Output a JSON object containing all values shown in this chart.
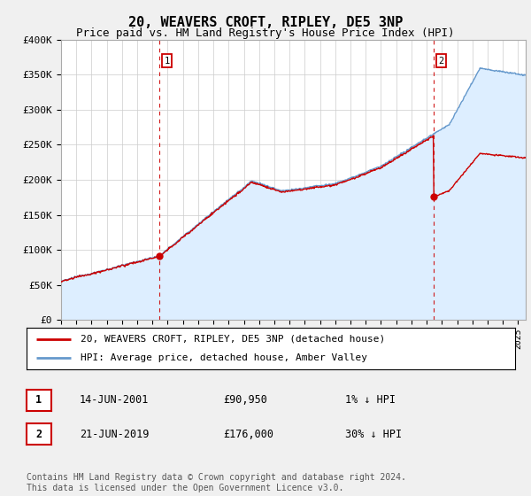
{
  "title": "20, WEAVERS CROFT, RIPLEY, DE5 3NP",
  "subtitle": "Price paid vs. HM Land Registry's House Price Index (HPI)",
  "ylim": [
    0,
    400000
  ],
  "yticks": [
    0,
    50000,
    100000,
    150000,
    200000,
    250000,
    300000,
    350000,
    400000
  ],
  "ytick_labels": [
    "£0",
    "£50K",
    "£100K",
    "£150K",
    "£200K",
    "£250K",
    "£300K",
    "£350K",
    "£400K"
  ],
  "line1_color": "#cc0000",
  "line2_color": "#6699cc",
  "line2_fill_color": "#ddeeff",
  "sale1_x": 2001.46,
  "sale1_y": 90950,
  "sale2_x": 2019.47,
  "sale2_y": 176000,
  "vline_color": "#cc0000",
  "legend_line1": "20, WEAVERS CROFT, RIPLEY, DE5 3NP (detached house)",
  "legend_line2": "HPI: Average price, detached house, Amber Valley",
  "table_row1_num": "1",
  "table_row1_date": "14-JUN-2001",
  "table_row1_price": "£90,950",
  "table_row1_hpi": "1% ↓ HPI",
  "table_row2_num": "2",
  "table_row2_date": "21-JUN-2019",
  "table_row2_price": "£176,000",
  "table_row2_hpi": "30% ↓ HPI",
  "footer": "Contains HM Land Registry data © Crown copyright and database right 2024.\nThis data is licensed under the Open Government Licence v3.0.",
  "background_color": "#f0f0f0",
  "plot_bg_color": "#ffffff",
  "title_fontsize": 11,
  "subtitle_fontsize": 9,
  "tick_fontsize": 8,
  "legend_fontsize": 8,
  "footer_fontsize": 7,
  "xlim_start": 1995,
  "xlim_end": 2025.5
}
